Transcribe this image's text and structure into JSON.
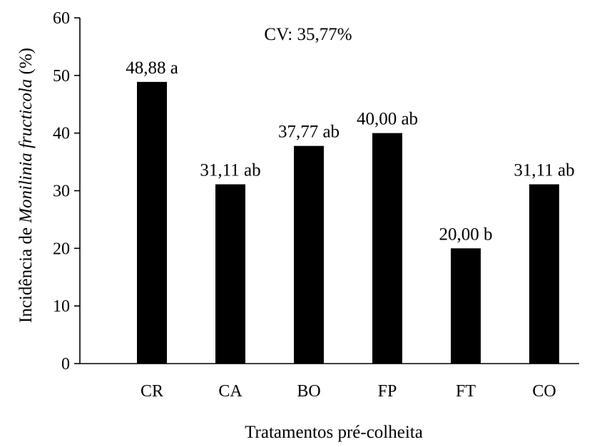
{
  "chart_data": {
    "type": "bar",
    "categories": [
      "CR",
      "CA",
      "BO",
      "FP",
      "FT",
      "CO"
    ],
    "values": [
      48.88,
      31.11,
      37.77,
      40.0,
      20.0,
      31.11
    ],
    "data_labels": [
      "48,88 a",
      "31,11 ab",
      "37,77 ab",
      "40,00 ab",
      "20,00 b",
      "31,11 ab"
    ],
    "annotation": "CV: 35,77%",
    "xlabel": "Tratamentos pré-colheita",
    "ylabel_prefix": "Incidência de ",
    "ylabel_italic": "Monilinia fructicola",
    "ylabel_suffix": " (%)",
    "ylim": [
      0,
      60
    ],
    "yticks": [
      0,
      10,
      20,
      30,
      40,
      50,
      60
    ],
    "bar_color": "#000000",
    "grid": false,
    "legend": "none"
  }
}
